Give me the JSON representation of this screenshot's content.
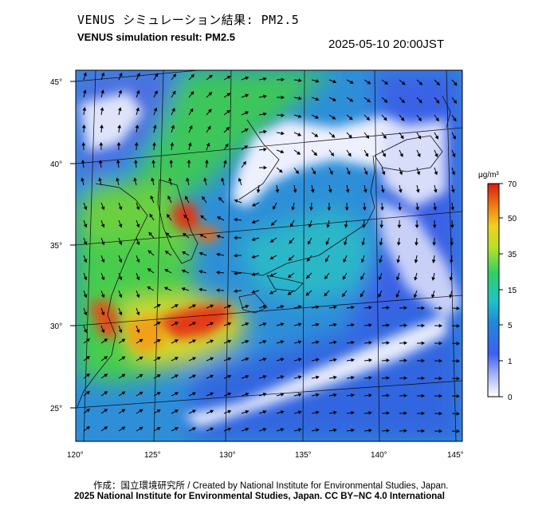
{
  "header": {
    "title_jp": "VENUS シミュレーション結果: PM2.5",
    "title_en": "VENUS simulation result: PM2.5",
    "timestamp": "2025-05-10 20:00JST"
  },
  "map": {
    "lat_ticks": [
      "45°",
      "40°",
      "35°",
      "30°",
      "25°"
    ],
    "lon_ticks": [
      "120°",
      "125°",
      "130°",
      "135°",
      "140°",
      "145°"
    ],
    "colors": {
      "background_low": "#5b7fe8",
      "mid": "#22b7c4",
      "green": "#36d25a",
      "high": "#e43212",
      "clean": "#f2f4ff"
    }
  },
  "colorbar": {
    "unit": "μg/m³",
    "labels": [
      "70",
      "50",
      "35",
      "15",
      "5",
      "1",
      "0"
    ]
  },
  "footer": {
    "credit_line1": "作成：国立環境研究所 / Created by National Institute for Environmental Studies, Japan.",
    "credit_line2": "2025 National Institute for Environmental Studies, Japan. CC BY−NC 4.0 International"
  }
}
